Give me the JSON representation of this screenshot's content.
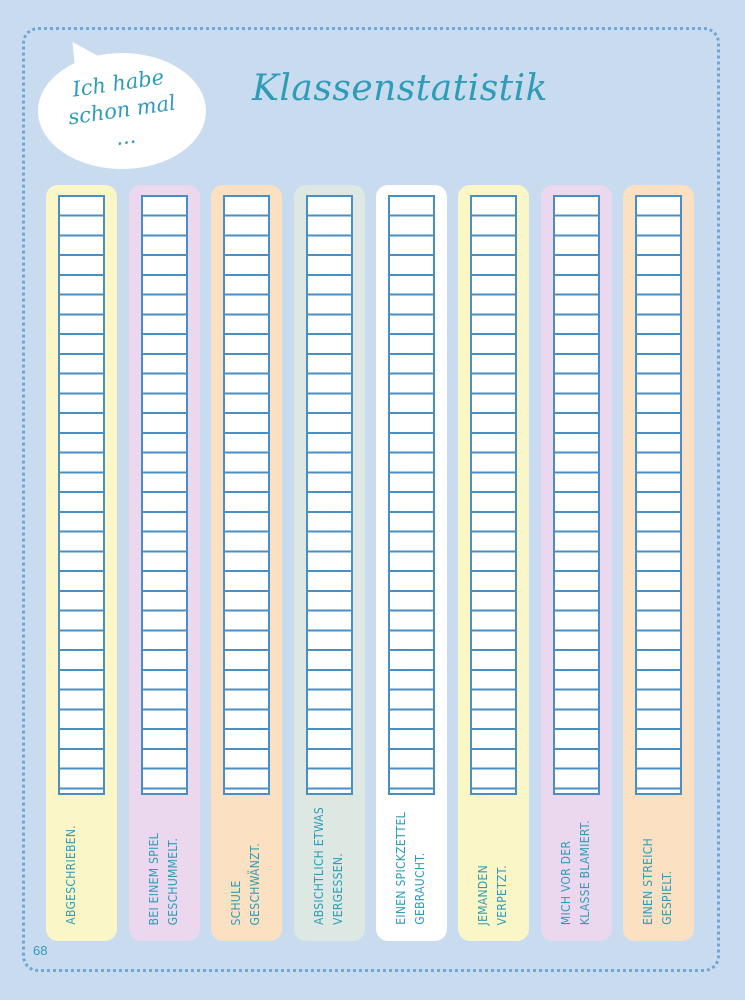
{
  "bubble": {
    "text": "Ich habe\nschon mal\n..."
  },
  "title": "Klassenstatistik",
  "page_number": "68",
  "columns": [
    {
      "label": "Abgeschrieben.",
      "color": "#fbf6c8"
    },
    {
      "label": "Bei einem Spiel\ngeschummelt.",
      "color": "#ecd8ee"
    },
    {
      "label": "Schule\ngeschwänzt.",
      "color": "#fbe1c2"
    },
    {
      "label": "Absichtlich etwas\nvergessen.",
      "color": "#dde8e3"
    },
    {
      "label": "Einen Spickzettel\ngebraucht.",
      "color": "#ffffff"
    },
    {
      "label": "Jemanden\nverpetzt.",
      "color": "#fbf6c8"
    },
    {
      "label": "Mich vor der\nKlasse blamiert.",
      "color": "#ecd8ee"
    },
    {
      "label": "Einen Streich\ngespielt.",
      "color": "#fbe1c2"
    }
  ]
}
